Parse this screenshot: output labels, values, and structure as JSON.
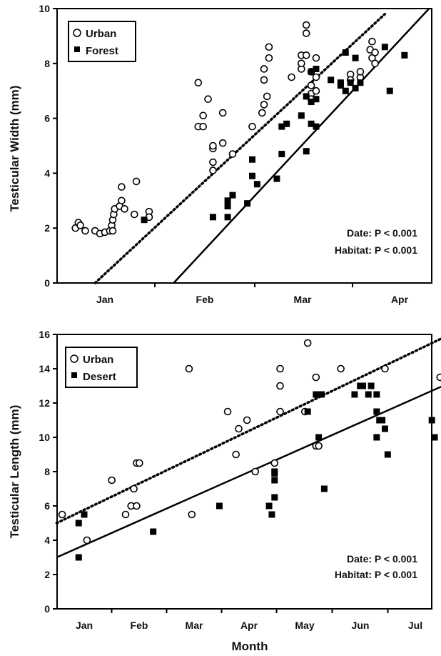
{
  "chart_data": [
    {
      "type": "scatter",
      "xlabel": "",
      "ylabel": "Testicular Width (mm)",
      "ylim": [
        0,
        10
      ],
      "yticks": [
        "0",
        "2",
        "4",
        "6",
        "8",
        "10"
      ],
      "xticks": [
        "Jan",
        "Feb",
        "Mar",
        "Apr"
      ],
      "legend": {
        "position": "top-left"
      },
      "annotations": [
        "Date: P < 0.001",
        "Habitat: P < 0.001"
      ],
      "series": [
        {
          "name": "Urban",
          "marker": "open-circle",
          "points": [
            [
              -0.3,
              2.0
            ],
            [
              -0.27,
              2.2
            ],
            [
              -0.25,
              2.1
            ],
            [
              -0.2,
              1.9
            ],
            [
              -0.1,
              1.9
            ],
            [
              -0.05,
              1.8
            ],
            [
              0.0,
              1.85
            ],
            [
              0.05,
              1.9
            ],
            [
              0.07,
              2.1
            ],
            [
              0.08,
              2.3
            ],
            [
              0.09,
              2.5
            ],
            [
              0.1,
              2.7
            ],
            [
              0.08,
              1.9
            ],
            [
              0.15,
              2.8
            ],
            [
              0.17,
              3.0
            ],
            [
              0.17,
              3.5
            ],
            [
              0.2,
              2.7
            ],
            [
              0.3,
              2.5
            ],
            [
              0.32,
              3.7
            ],
            [
              0.45,
              2.6
            ],
            [
              0.45,
              2.4
            ],
            [
              0.95,
              7.3
            ],
            [
              0.95,
              5.7
            ],
            [
              1.0,
              5.7
            ],
            [
              1.0,
              6.1
            ],
            [
              1.05,
              6.7
            ],
            [
              1.1,
              4.1
            ],
            [
              1.1,
              4.4
            ],
            [
              1.1,
              4.9
            ],
            [
              1.1,
              5.0
            ],
            [
              1.2,
              6.2
            ],
            [
              1.2,
              5.1
            ],
            [
              1.3,
              4.7
            ],
            [
              1.5,
              5.7
            ],
            [
              1.6,
              6.2
            ],
            [
              1.62,
              6.5
            ],
            [
              1.62,
              7.4
            ],
            [
              1.62,
              7.8
            ],
            [
              1.65,
              6.8
            ],
            [
              1.67,
              8.2
            ],
            [
              1.67,
              8.6
            ],
            [
              1.9,
              7.5
            ],
            [
              2.0,
              7.8
            ],
            [
              2.0,
              8.0
            ],
            [
              2.0,
              8.3
            ],
            [
              2.05,
              8.3
            ],
            [
              2.05,
              9.4
            ],
            [
              2.05,
              9.1
            ],
            [
              2.1,
              7.7
            ],
            [
              2.1,
              7.2
            ],
            [
              2.1,
              6.9
            ],
            [
              2.1,
              6.7
            ],
            [
              2.15,
              7.5
            ],
            [
              2.15,
              8.2
            ],
            [
              2.15,
              7.0
            ],
            [
              2.5,
              7.6
            ],
            [
              2.5,
              7.4
            ],
            [
              2.6,
              7.5
            ],
            [
              2.6,
              7.7
            ],
            [
              2.7,
              8.5
            ],
            [
              2.72,
              8.8
            ],
            [
              2.72,
              8.2
            ],
            [
              2.75,
              8.0
            ],
            [
              2.75,
              8.4
            ]
          ],
          "trend": {
            "x": [
              -0.1,
              2.85
            ],
            "y": [
              0,
              9.8
            ],
            "style": "dotted"
          }
        },
        {
          "name": "Forest",
          "marker": "filled-square",
          "points": [
            [
              0.4,
              2.3
            ],
            [
              1.1,
              2.4
            ],
            [
              1.25,
              2.4
            ],
            [
              1.25,
              2.8
            ],
            [
              1.25,
              3.0
            ],
            [
              1.3,
              3.2
            ],
            [
              1.45,
              2.9
            ],
            [
              1.5,
              3.9
            ],
            [
              1.55,
              3.6
            ],
            [
              1.5,
              4.5
            ],
            [
              1.75,
              3.8
            ],
            [
              1.8,
              4.7
            ],
            [
              1.8,
              5.7
            ],
            [
              1.85,
              5.8
            ],
            [
              2.05,
              4.8
            ],
            [
              2.1,
              5.8
            ],
            [
              2.15,
              5.7
            ],
            [
              2.0,
              6.1
            ],
            [
              2.05,
              6.8
            ],
            [
              2.1,
              6.6
            ],
            [
              2.15,
              6.7
            ],
            [
              2.1,
              7.7
            ],
            [
              2.15,
              7.8
            ],
            [
              2.3,
              7.4
            ],
            [
              2.45,
              7.0
            ],
            [
              2.45,
              8.4
            ],
            [
              2.5,
              7.3
            ],
            [
              2.55,
              7.1
            ],
            [
              2.4,
              7.3
            ],
            [
              2.55,
              8.2
            ],
            [
              2.6,
              7.3
            ],
            [
              2.85,
              8.6
            ],
            [
              2.9,
              7.0
            ],
            [
              3.05,
              8.3
            ],
            [
              2.4,
              7.2
            ]
          ],
          "trend": {
            "x": [
              0.7,
              3.3
            ],
            "y": [
              0,
              10.0
            ],
            "style": "solid"
          }
        }
      ]
    },
    {
      "type": "scatter",
      "xlabel": "Month",
      "ylabel": "Testicular Length (mm)",
      "ylim": [
        0,
        16
      ],
      "yticks": [
        "0",
        "2",
        "4",
        "6",
        "8",
        "10",
        "12",
        "14",
        "16"
      ],
      "xticks": [
        "Jan",
        "Feb",
        "Mar",
        "Apr",
        "May",
        "Jun",
        "Jul"
      ],
      "legend": {
        "position": "top-left"
      },
      "annotations": [
        "Date: P < 0.001",
        "Habitat: P < 0.001"
      ],
      "series": [
        {
          "name": "Urban",
          "marker": "open-circle",
          "points": [
            [
              -0.4,
              5.5
            ],
            [
              0.05,
              4.0
            ],
            [
              0.5,
              7.5
            ],
            [
              0.75,
              5.5
            ],
            [
              0.85,
              6.0
            ],
            [
              0.95,
              6.0
            ],
            [
              0.9,
              7.0
            ],
            [
              0.95,
              8.5
            ],
            [
              1.0,
              8.5
            ],
            [
              1.9,
              14.0
            ],
            [
              1.95,
              5.5
            ],
            [
              2.6,
              11.5
            ],
            [
              2.75,
              9.0
            ],
            [
              2.8,
              10.5
            ],
            [
              2.95,
              11.0
            ],
            [
              3.1,
              8.0
            ],
            [
              3.45,
              8.5
            ],
            [
              3.55,
              11.5
            ],
            [
              3.55,
              13.0
            ],
            [
              3.55,
              14.0
            ],
            [
              4.0,
              11.5
            ],
            [
              4.05,
              15.5
            ],
            [
              4.2,
              9.5
            ],
            [
              4.25,
              9.5
            ],
            [
              4.2,
              13.5
            ],
            [
              4.65,
              14.0
            ],
            [
              5.45,
              14.0
            ],
            [
              6.45,
              13.5
            ]
          ],
          "trend": {
            "x": [
              -0.5,
              6.5
            ],
            "y": [
              5.0,
              15.8
            ],
            "style": "dotted"
          }
        },
        {
          "name": "Desert",
          "marker": "filled-square",
          "points": [
            [
              -0.1,
              3.0
            ],
            [
              -0.1,
              5.0
            ],
            [
              0.0,
              5.5
            ],
            [
              1.25,
              4.5
            ],
            [
              2.45,
              6.0
            ],
            [
              3.35,
              6.0
            ],
            [
              3.4,
              5.5
            ],
            [
              3.45,
              6.5
            ],
            [
              3.45,
              7.5
            ],
            [
              3.45,
              8.0
            ],
            [
              3.45,
              7.9
            ],
            [
              4.05,
              11.5
            ],
            [
              4.2,
              12.5
            ],
            [
              4.25,
              10.0
            ],
            [
              4.3,
              12.5
            ],
            [
              4.35,
              7.0
            ],
            [
              4.9,
              12.5
            ],
            [
              5.0,
              13.0
            ],
            [
              5.05,
              13.0
            ],
            [
              5.15,
              12.5
            ],
            [
              5.2,
              13.0
            ],
            [
              5.3,
              12.5
            ],
            [
              5.3,
              11.5
            ],
            [
              5.3,
              10.0
            ],
            [
              5.35,
              11.0
            ],
            [
              5.4,
              11.0
            ],
            [
              5.45,
              10.5
            ],
            [
              5.5,
              9.0
            ],
            [
              6.3,
              11.0
            ],
            [
              6.35,
              10.0
            ],
            [
              6.7,
              9.0
            ],
            [
              7.25,
              10.5
            ]
          ],
          "trend": {
            "x": [
              -0.5,
              6.5
            ],
            "y": [
              3.0,
              13.0
            ],
            "style": "solid"
          }
        }
      ]
    }
  ]
}
